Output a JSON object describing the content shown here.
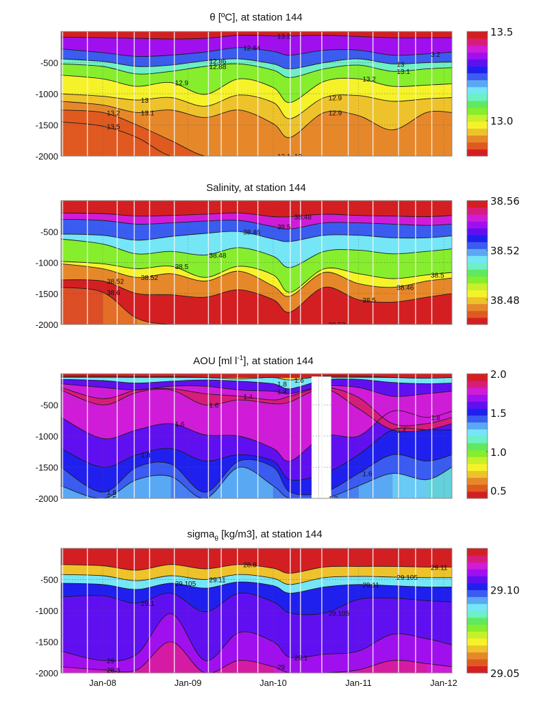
{
  "figure": {
    "x_axis": {
      "tick_labels": [
        "Jan-08",
        "Jan-09",
        "Jan-10",
        "Jan-11",
        "Jan-12"
      ],
      "tick_years": [
        2008,
        2009,
        2010,
        2011,
        2012
      ],
      "range_years": [
        2007.5,
        2012.1
      ]
    },
    "y_axis": {
      "tick_labels": [
        "-500",
        "-1000",
        "-1500",
        "-2000"
      ],
      "tick_values": [
        -500,
        -1000,
        -1500,
        -2000
      ],
      "range": [
        -2000,
        0
      ]
    },
    "cast_times": [
      2007.53,
      2007.82,
      2008.17,
      2008.37,
      2008.55,
      2008.84,
      2009.24,
      2009.39,
      2009.58,
      2009.82,
      2010.2,
      2010.32,
      2010.57,
      2010.88,
      2011.17,
      2011.47,
      2011.67,
      2011.86,
      2012.15
    ],
    "colormap": [
      "#d41f22",
      "#e05a20",
      "#e6882a",
      "#eec22a",
      "#f6f22a",
      "#c8f02a",
      "#86ee2c",
      "#60e860",
      "#6cf0c4",
      "#74e6f6",
      "#5aa8f4",
      "#3a5cf0",
      "#2020ee",
      "#6010f0",
      "#a010ee",
      "#d01cd8",
      "#d81c7a",
      "#d41f22"
    ]
  },
  "chart_data": [
    {
      "type": "heatmap",
      "id": "theta",
      "title": "θ [ºC],  at station  144",
      "title_main": "θ [ºC],  at station  144",
      "colorbar": {
        "min": 12.8,
        "max": 13.5,
        "tick_labels": [
          "13.5",
          "13.0"
        ],
        "tick_values": [
          13.5,
          13.0
        ]
      },
      "xlabel": "",
      "ylabel": "",
      "contour_labels": [
        "13.5",
        "13.2",
        "13.1",
        "13",
        "12.9",
        "12.88",
        "12.86",
        "12.84",
        "13.2",
        "13.1",
        "13",
        "12.9",
        "12.9",
        "13.2",
        "13.1",
        "13",
        "3.2"
      ],
      "profiles": {
        "times": [
          2007.5,
          2008.0,
          2008.4,
          2008.8,
          2009.2,
          2009.6,
          2010.0,
          2010.2,
          2010.6,
          2011.0,
          2011.4,
          2011.8,
          2012.1
        ],
        "isolines": [
          {
            "value": 13.45,
            "depths": [
              -90,
              -100,
              -110,
              -120,
              -110,
              -60,
              -70,
              -70,
              -60,
              -80,
              -100,
              -100,
              -100
            ]
          },
          {
            "value": 13.3,
            "depths": [
              -280,
              -340,
              -400,
              -380,
              -330,
              -260,
              -320,
              -380,
              -300,
              -300,
              -380,
              -360,
              -330
            ]
          },
          {
            "value": 13.2,
            "depths": [
              -440,
              -480,
              -560,
              -540,
              -470,
              -440,
              -520,
              -600,
              -500,
              -440,
              -520,
              -500,
              -490
            ]
          },
          {
            "value": 13.1,
            "depths": [
              -520,
              -560,
              -680,
              -640,
              -560,
              -520,
              -620,
              -740,
              -600,
              -540,
              -640,
              -600,
              -580
            ]
          },
          {
            "value": 13.0,
            "depths": [
              -700,
              -760,
              -880,
              -820,
              -1010,
              -760,
              -900,
              -1140,
              -800,
              -760,
              -880,
              -860,
              -840
            ]
          },
          {
            "value": 12.95,
            "depths": [
              -1000,
              -1040,
              -1100,
              -1060,
              -1200,
              -1020,
              -1140,
              -1400,
              -1060,
              -1030,
              -1120,
              -1080,
              -1060
            ]
          },
          {
            "value": 12.9,
            "depths": [
              -1120,
              -1180,
              -1300,
              -1260,
              -1380,
              -1260,
              -1480,
              -1700,
              -1300,
              -1350,
              -1580,
              -1300,
              -1300
            ]
          },
          {
            "value": 12.86,
            "depths": [
              -1260,
              -1300,
              -1500,
              -1750,
              -2000,
              -2000,
              -2000,
              -2000,
              -2000,
              -2000,
              -2000,
              -2000,
              -2000
            ]
          },
          {
            "value": 12.84,
            "depths": [
              -1450,
              -1520,
              -1700,
              -2000,
              -2000,
              -2000,
              -2000,
              -2000,
              -2000,
              -2000,
              -2000,
              -2000,
              -2000
            ]
          }
        ],
        "surface_value": 13.5,
        "deep_values": [
          12.82,
          12.86,
          12.86,
          12.87,
          12.88,
          12.88,
          12.89,
          12.89,
          12.88,
          12.88,
          12.88,
          12.88,
          12.88
        ]
      }
    },
    {
      "type": "heatmap",
      "id": "salinity",
      "title": "Salinity,   at station  144",
      "title_main": "Salinity,   at station  144",
      "colorbar": {
        "min": 38.46,
        "max": 38.56,
        "tick_labels": [
          "38.56",
          "38.52",
          "38.48"
        ],
        "tick_values": [
          38.56,
          38.52,
          38.48
        ]
      },
      "xlabel": "",
      "ylabel": "",
      "contour_labels": [
        "38.6",
        "38.52",
        "38.52",
        "38.5",
        "38.48",
        "38.46",
        "38.5",
        "38.48",
        "38.52",
        "38.5",
        "38.46",
        "38.5"
      ],
      "profiles": {
        "times": [
          2007.5,
          2008.0,
          2008.4,
          2008.8,
          2009.2,
          2009.6,
          2010.0,
          2010.2,
          2010.6,
          2011.0,
          2011.4,
          2011.8,
          2012.1
        ],
        "isolines": [
          {
            "value": 38.56,
            "depths": [
              -200,
              -210,
              -250,
              -240,
              -220,
              -200,
              -260,
              -260,
              -220,
              -240,
              -250,
              -260,
              -240
            ]
          },
          {
            "value": 38.53,
            "depths": [
              -300,
              -320,
              -380,
              -360,
              -330,
              -320,
              -420,
              -460,
              -360,
              -360,
              -380,
              -400,
              -380
            ]
          },
          {
            "value": 38.52,
            "depths": [
              -540,
              -560,
              -640,
              -580,
              -530,
              -500,
              -620,
              -660,
              -560,
              -560,
              -600,
              -600,
              -570
            ]
          },
          {
            "value": 38.5,
            "depths": [
              -620,
              -700,
              -860,
              -820,
              -880,
              -760,
              -900,
              -1080,
              -820,
              -800,
              -860,
              -820,
              -780
            ]
          },
          {
            "value": 38.49,
            "depths": [
              -980,
              -1020,
              -1100,
              -1060,
              -1240,
              -1060,
              -1200,
              -1480,
              -1100,
              -1180,
              -1260,
              -1200,
              -1160
            ]
          },
          {
            "value": 38.48,
            "depths": [
              -1020,
              -1100,
              -1240,
              -1180,
              -1300,
              -1140,
              -1380,
              -1540,
              -1160,
              -1340,
              -1400,
              -1300,
              -1250
            ]
          },
          {
            "value": 38.47,
            "depths": [
              -1280,
              -1300,
              -1500,
              -1520,
              -1560,
              -1440,
              -1600,
              -1800,
              -1400,
              -1600,
              -1640,
              -1560,
              -1500
            ]
          },
          {
            "value": 38.46,
            "depths": [
              -1400,
              -1480,
              -1900,
              -2000,
              -2000,
              -2000,
              -2000,
              -2000,
              -2000,
              -2000,
              -2000,
              -2000,
              -2000
            ]
          }
        ],
        "surface_value": 38.56,
        "deep_values": [
          38.455,
          38.465,
          38.47,
          38.475,
          38.478,
          38.48,
          38.478,
          38.478,
          38.48,
          38.482,
          38.48,
          38.478,
          38.478
        ]
      }
    },
    {
      "type": "heatmap",
      "id": "aou",
      "title": "AOU [ml l-1],   at station  144",
      "title_main": "AOU [ml l",
      "title_sup": "-1",
      "title_rest": "],   at station  144",
      "colorbar": {
        "min": 0.4,
        "max": 2.0,
        "tick_labels": [
          "2.0",
          "1.5",
          "1.0",
          "0.5"
        ],
        "tick_values": [
          2.0,
          1.5,
          1.0,
          0.5
        ]
      },
      "xlabel": "",
      "ylabel": "",
      "contour_labels": [
        "1.5",
        "1.8",
        "1.8",
        "1.6",
        "1.6",
        "1.4",
        "1.4",
        "1.8",
        "1.6",
        "1.2",
        "1.6",
        "1.4",
        "1.8"
      ],
      "missing_interval": [
        2010.45,
        2010.68
      ],
      "profiles": {
        "times": [
          2007.5,
          2008.0,
          2008.4,
          2008.8,
          2009.2,
          2009.6,
          2010.0,
          2010.2,
          2010.6,
          2011.0,
          2011.4,
          2011.8,
          2012.1
        ],
        "isolines": [
          {
            "value": 1.0,
            "depths": [
              -40,
              -40,
              -50,
              -50,
              -60,
              -80,
              -60,
              -100,
              -40,
              -40,
              -60,
              -70,
              -60
            ]
          },
          {
            "value": 1.5,
            "depths": [
              -90,
              -110,
              -150,
              -120,
              -100,
              -120,
              -160,
              -240,
              -100,
              -90,
              -140,
              -160,
              -150
            ]
          },
          {
            "value": 1.7,
            "depths": [
              -160,
              -220,
              -260,
              -200,
              -200,
              -260,
              -280,
              -320,
              -200,
              -220,
              -360,
              -320,
              -280
            ]
          },
          {
            "value": 1.8,
            "depths": [
              -220,
              -400,
              -260,
              -240,
              -320,
              -360,
              -420,
              -360,
              -220,
              -380,
              -800,
              -800,
              -700
            ]
          },
          {
            "value": 1.85,
            "depths": [
              -260,
              -500,
              -300,
              -260,
              -500,
              -420,
              -480,
              -450,
              -240,
              -560,
              -900,
              -900,
              -800
            ]
          },
          {
            "value": 1.7,
            "depths": [
              -700,
              -1040,
              -900,
              -800,
              -980,
              -1000,
              -1200,
              -1400,
              -1000,
              -1000,
              -600,
              -700,
              -600
            ]
          },
          {
            "value": 1.55,
            "depths": [
              -1200,
              -1500,
              -1300,
              -1200,
              -1400,
              -1300,
              -1400,
              -1700,
              -1600,
              -1300,
              -900,
              -900,
              -900
            ]
          },
          {
            "value": 1.45,
            "depths": [
              -1500,
              -1900,
              -1500,
              -1450,
              -1900,
              -1400,
              -1500,
              -1900,
              -1900,
              -1600,
              -1300,
              -1400,
              -1300
            ]
          },
          {
            "value": 1.35,
            "depths": [
              -1800,
              -2000,
              -1700,
              -1650,
              -2000,
              -1500,
              -1800,
              -2000,
              -2000,
              -1800,
              -1600,
              -1700,
              -1500
            ]
          }
        ],
        "surface_value": 0.45,
        "deep_values": [
          1.4,
          1.35,
          1.25,
          1.35,
          1.45,
          1.25,
          1.35,
          1.45,
          1.45,
          1.35,
          1.3,
          1.2,
          1.1
        ]
      }
    },
    {
      "type": "heatmap",
      "id": "sigma",
      "title": "sigma θ [kg/m3],   at station  144",
      "title_main": "sigma",
      "title_sub": "θ",
      "title_rest": " [kg/m3],   at station  144",
      "colorbar": {
        "min": 29.05,
        "max": 29.125,
        "tick_labels": [
          "29.10",
          "29.05"
        ],
        "tick_values": [
          29.1,
          29.05
        ]
      },
      "xlabel": "",
      "ylabel": "",
      "contour_labels": [
        "28.8",
        "29",
        "29.1",
        "29.105",
        "29.11",
        "28.8",
        "29",
        "29.1",
        "29.105",
        "29.11",
        "29.105",
        "29.11"
      ],
      "profiles": {
        "times": [
          2007.5,
          2008.0,
          2008.4,
          2008.8,
          2009.2,
          2009.6,
          2010.0,
          2010.2,
          2010.6,
          2011.0,
          2011.4,
          2011.8,
          2012.1
        ],
        "isolines": [
          {
            "value": 29.05,
            "depths": [
              -260,
              -280,
              -350,
              -260,
              -330,
              -260,
              -320,
              -400,
              -300,
              -290,
              -290,
              -300,
              -300
            ]
          },
          {
            "value": 29.08,
            "depths": [
              -420,
              -440,
              -520,
              -440,
              -500,
              -420,
              -480,
              -580,
              -470,
              -450,
              -460,
              -470,
              -470
            ]
          },
          {
            "value": 29.1,
            "depths": [
              -560,
              -580,
              -660,
              -560,
              -640,
              -540,
              -600,
              -720,
              -620,
              -580,
              -600,
              -620,
              -620
            ]
          },
          {
            "value": 29.105,
            "depths": [
              -780,
              -760,
              -880,
              -720,
              -1020,
              -720,
              -860,
              -1040,
              -1040,
              -820,
              -800,
              -840,
              -860
            ]
          },
          {
            "value": 29.11,
            "depths": [
              -1650,
              -1800,
              -1700,
              -1050,
              -1800,
              -1350,
              -1500,
              -1750,
              -1700,
              -1650,
              -1380,
              -1450,
              -1550
            ]
          },
          {
            "value": 29.115,
            "depths": [
              -1900,
              -1950,
              -1950,
              -1500,
              -2000,
              -1800,
              -1900,
              -2000,
              -2000,
              -1950,
              -1800,
              -1850,
              -1900
            ]
          }
        ],
        "surface_value": 28.8,
        "deep_values": [
          29.116,
          29.116,
          29.118,
          29.12,
          29.116,
          29.118,
          29.116,
          29.114,
          29.114,
          29.116,
          29.118,
          29.116,
          29.116
        ]
      }
    }
  ]
}
